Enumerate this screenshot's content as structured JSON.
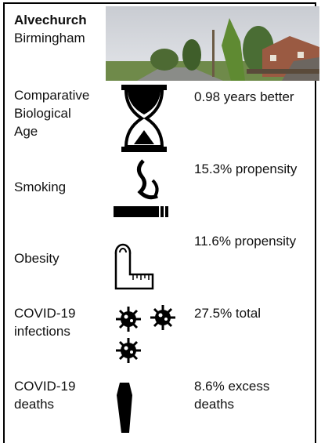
{
  "header": {
    "title": "Alvechurch",
    "subtitle": "Birmingham"
  },
  "rows": [
    {
      "label": [
        "Comparative",
        "Biological",
        "Age"
      ],
      "value": [
        "0.98 years better"
      ]
    },
    {
      "label": [
        "Smoking"
      ],
      "value": [
        "15.3% propensity"
      ]
    },
    {
      "label": [
        "Obesity"
      ],
      "value": [
        "11.6% propensity"
      ]
    },
    {
      "label": [
        "COVID-19",
        "infections"
      ],
      "value": [
        "27.5% total"
      ]
    },
    {
      "label": [
        "COVID-19",
        "deaths"
      ],
      "value": [
        "8.6% excess",
        "deaths"
      ]
    }
  ]
}
